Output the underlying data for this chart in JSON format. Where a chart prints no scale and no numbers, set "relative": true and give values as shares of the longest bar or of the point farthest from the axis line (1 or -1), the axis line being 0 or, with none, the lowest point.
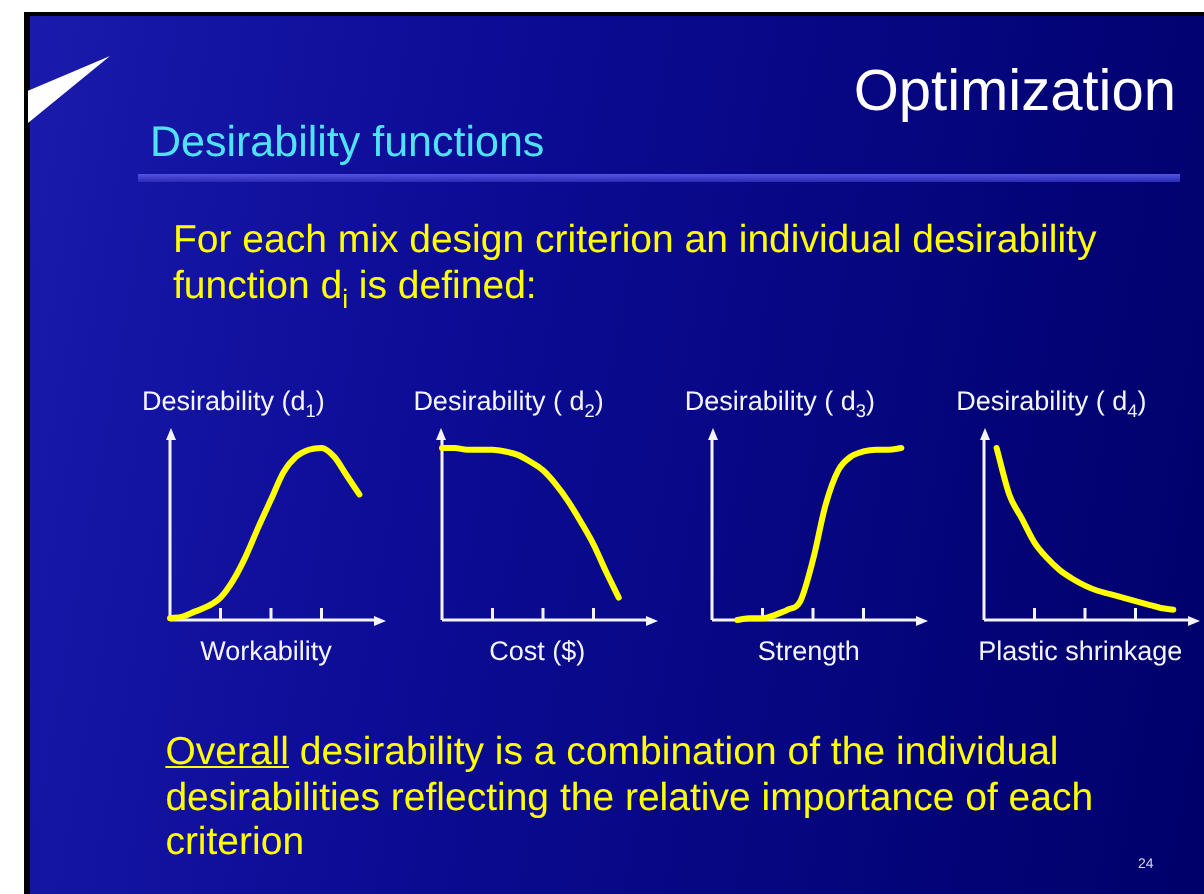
{
  "chart_data": [
    {
      "type": "other",
      "title": "Optimization",
      "subtitle": "Desirability functions",
      "annotations": [
        "For each mix design criterion an individual desirability function d$_{i}$ is defined:"
      ]
    },
    {
      "type": "line",
      "ylabel": "Desirability (d$_{1}$)",
      "xlabel": "Workability",
      "relative": true,
      "color": "#ffff00",
      "categories": [
        null,
        null,
        null,
        null,
        null,
        null,
        null,
        null,
        null,
        null,
        null,
        null,
        null,
        null,
        null,
        null,
        null
      ],
      "values": [
        0.01,
        0.02,
        0.05,
        0.08,
        0.13,
        0.23,
        0.37,
        0.54,
        0.7,
        0.86,
        0.95,
        0.99,
        1,
        0.95,
        0.84,
        0.73,
        null
      ]
    },
    {
      "type": "line",
      "ylabel": "Desirability ( d$_{2}$)",
      "xlabel": "Cost ($)",
      "relative": true,
      "color": "#ffff00",
      "categories": [
        null,
        null,
        null,
        null,
        null,
        null,
        null,
        null,
        null,
        null,
        null,
        null,
        null,
        null,
        null,
        null,
        null
      ],
      "values": [
        1,
        1,
        0.99,
        0.99,
        0.99,
        0.98,
        0.96,
        0.92,
        0.87,
        0.79,
        0.69,
        0.57,
        0.44,
        0.28,
        0.13,
        null,
        null
      ]
    },
    {
      "type": "line",
      "ylabel": "Desirability ( d$_{3}$)",
      "xlabel": "Strength",
      "relative": true,
      "color": "#ffff00",
      "categories": [
        null,
        null,
        null,
        null,
        null,
        null,
        null,
        null,
        null,
        null,
        null,
        null,
        null,
        null,
        null,
        null,
        null
      ],
      "values": [
        null,
        null,
        0,
        0.01,
        0.01,
        0.03,
        0.06,
        0.11,
        0.35,
        0.67,
        0.87,
        0.95,
        0.98,
        0.99,
        0.99,
        1,
        null
      ]
    },
    {
      "type": "line",
      "ylabel": "Desirability ( d$_{4}$)",
      "xlabel": "Plastic shrinkage",
      "relative": true,
      "color": "#ffff00",
      "categories": [
        null,
        null,
        null,
        null,
        null,
        null,
        null,
        null,
        null,
        null,
        null,
        null,
        null,
        null,
        null,
        null,
        null
      ],
      "values": [
        null,
        1,
        0.73,
        0.59,
        0.45,
        0.36,
        0.29,
        0.24,
        0.2,
        0.17,
        0.15,
        0.13,
        0.11,
        0.09,
        0.07,
        0.06,
        null
      ]
    },
    {
      "type": "other",
      "annotations": [
        "Overall desirability is a combination of the individual desirabilities reflecting the relative importance of each criterion",
        "24"
      ]
    }
  ]
}
